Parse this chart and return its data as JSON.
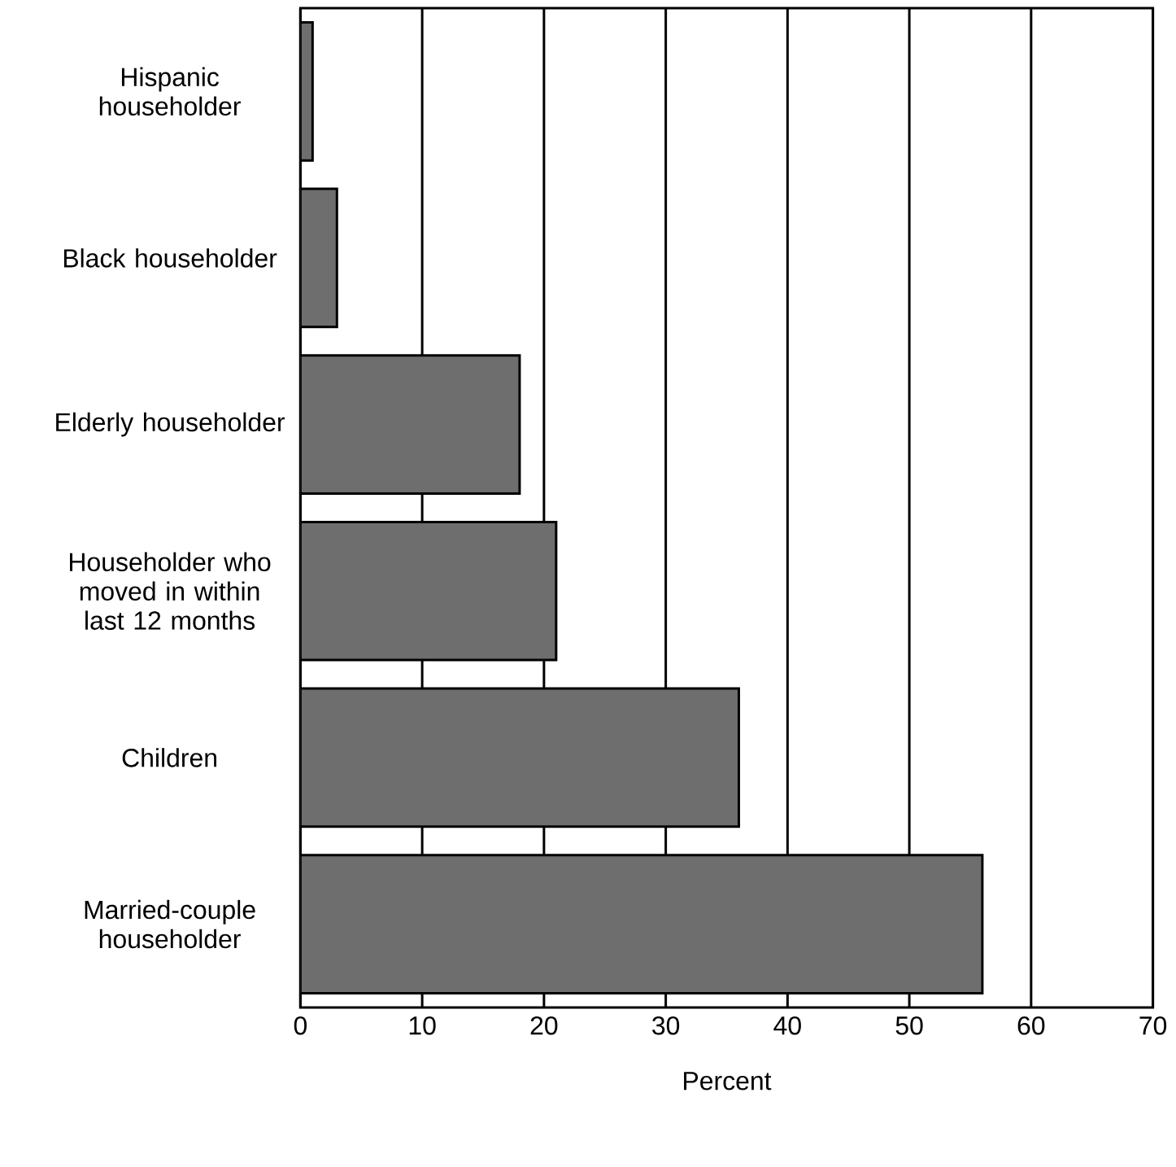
{
  "chart_data": {
    "type": "bar",
    "orientation": "horizontal",
    "xlabel": "Percent",
    "categories": [
      "Hispanic householder",
      "Black householder",
      "Elderly householder",
      "Householder who moved in within last 12 months",
      "Children",
      "Married-couple householder"
    ],
    "values": [
      1,
      3,
      18,
      21,
      36,
      56
    ],
    "color": "#6e6e6e",
    "xlim": [
      0,
      70
    ],
    "xticks": [
      0,
      10,
      20,
      30,
      40,
      50,
      60,
      70
    ],
    "grid": "x"
  }
}
